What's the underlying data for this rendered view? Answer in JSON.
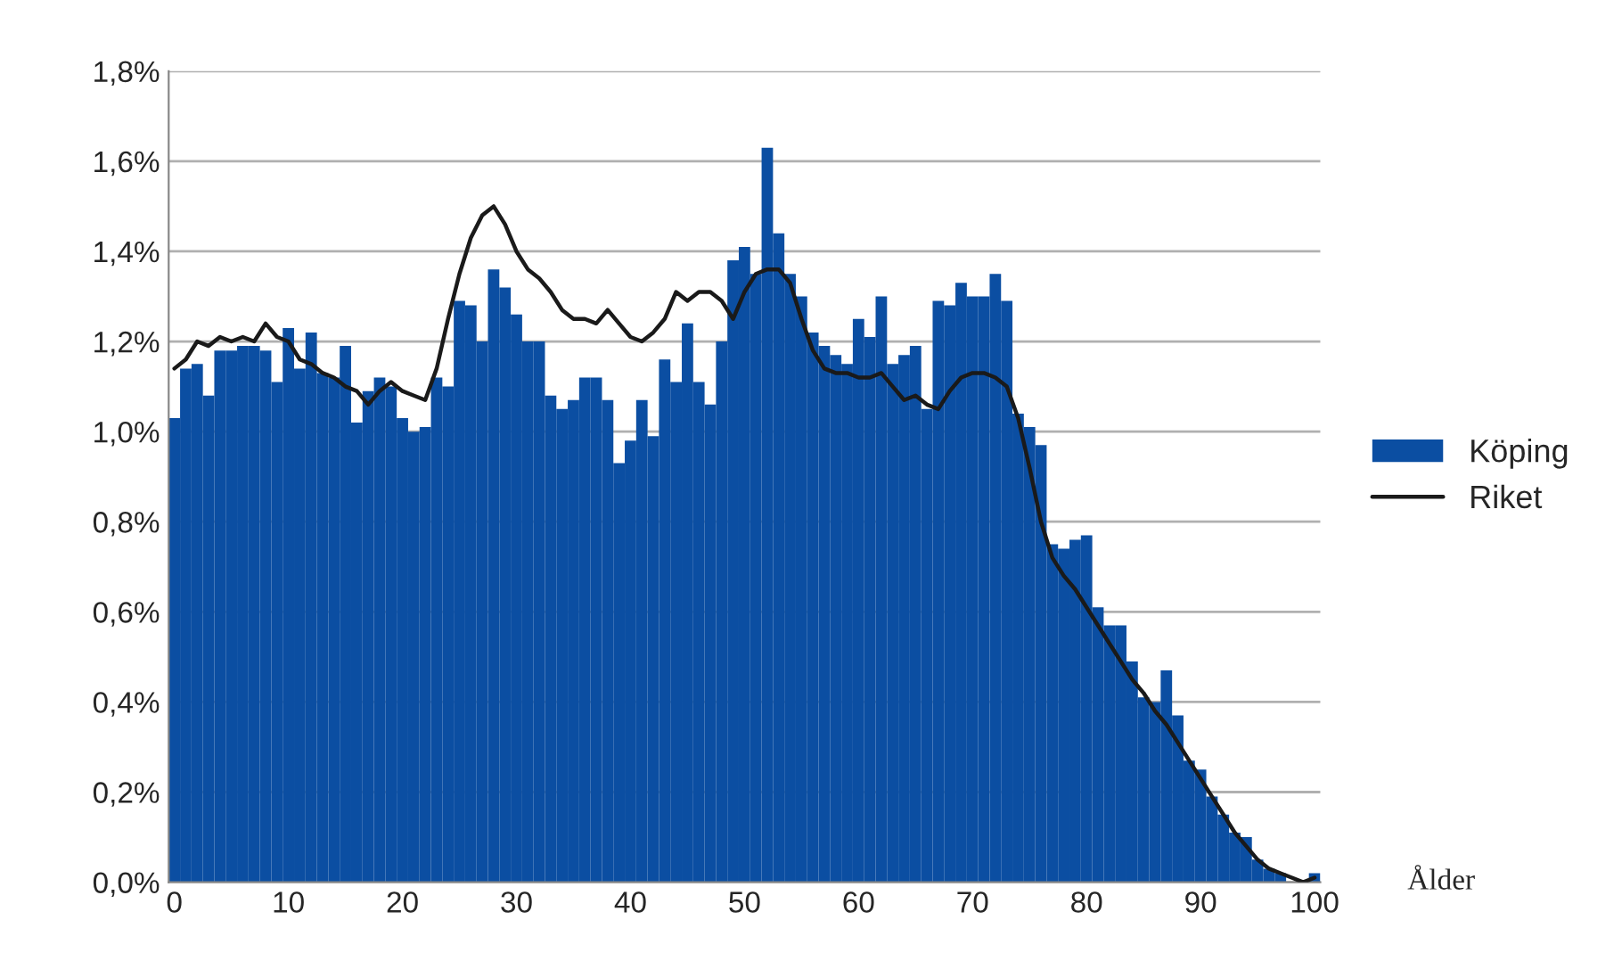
{
  "chart_data": {
    "type": "bar",
    "xlabel": "Ålder",
    "x": [
      0,
      1,
      2,
      3,
      4,
      5,
      6,
      7,
      8,
      9,
      10,
      11,
      12,
      13,
      14,
      15,
      16,
      17,
      18,
      19,
      20,
      21,
      22,
      23,
      24,
      25,
      26,
      27,
      28,
      29,
      30,
      31,
      32,
      33,
      34,
      35,
      36,
      37,
      38,
      39,
      40,
      41,
      42,
      43,
      44,
      45,
      46,
      47,
      48,
      49,
      50,
      51,
      52,
      53,
      54,
      55,
      56,
      57,
      58,
      59,
      60,
      61,
      62,
      63,
      64,
      65,
      66,
      67,
      68,
      69,
      70,
      71,
      72,
      73,
      74,
      75,
      76,
      77,
      78,
      79,
      80,
      81,
      82,
      83,
      84,
      85,
      86,
      87,
      88,
      89,
      90,
      91,
      92,
      93,
      94,
      95,
      96,
      97,
      98,
      99,
      100
    ],
    "series": [
      {
        "name": "Köping",
        "color": "#0b4ea2",
        "values": [
          1.03,
          1.14,
          1.15,
          1.08,
          1.18,
          1.18,
          1.19,
          1.19,
          1.18,
          1.11,
          1.23,
          1.14,
          1.22,
          1.13,
          1.12,
          1.19,
          1.02,
          1.09,
          1.12,
          1.1,
          1.03,
          1.0,
          1.01,
          1.12,
          1.1,
          1.29,
          1.28,
          1.2,
          1.36,
          1.32,
          1.26,
          1.2,
          1.2,
          1.08,
          1.05,
          1.07,
          1.12,
          1.12,
          1.07,
          0.93,
          0.98,
          1.07,
          0.99,
          1.16,
          1.11,
          1.24,
          1.11,
          1.06,
          1.2,
          1.38,
          1.41,
          1.35,
          1.63,
          1.44,
          1.35,
          1.3,
          1.22,
          1.19,
          1.17,
          1.15,
          1.25,
          1.21,
          1.3,
          1.15,
          1.17,
          1.19,
          1.05,
          1.29,
          1.28,
          1.33,
          1.3,
          1.3,
          1.35,
          1.29,
          1.04,
          1.01,
          0.97,
          0.75,
          0.74,
          0.76,
          0.77,
          0.61,
          0.57,
          0.57,
          0.49,
          0.41,
          0.4,
          0.47,
          0.37,
          0.27,
          0.25,
          0.19,
          0.15,
          0.11,
          0.1,
          0.05,
          0.03,
          0.02,
          null,
          null,
          0.02
        ]
      },
      {
        "name": "Riket",
        "type": "line",
        "color": "#1a1a1a",
        "values": [
          1.14,
          1.16,
          1.2,
          1.19,
          1.21,
          1.2,
          1.21,
          1.2,
          1.24,
          1.21,
          1.2,
          1.16,
          1.15,
          1.13,
          1.12,
          1.1,
          1.09,
          1.06,
          1.09,
          1.11,
          1.09,
          1.08,
          1.07,
          1.14,
          1.25,
          1.35,
          1.43,
          1.48,
          1.5,
          1.46,
          1.4,
          1.36,
          1.34,
          1.31,
          1.27,
          1.25,
          1.25,
          1.24,
          1.27,
          1.24,
          1.21,
          1.2,
          1.22,
          1.25,
          1.31,
          1.29,
          1.31,
          1.31,
          1.29,
          1.25,
          1.31,
          1.35,
          1.36,
          1.36,
          1.33,
          1.25,
          1.18,
          1.14,
          1.13,
          1.13,
          1.12,
          1.12,
          1.13,
          1.1,
          1.07,
          1.08,
          1.06,
          1.05,
          1.09,
          1.12,
          1.13,
          1.13,
          1.12,
          1.1,
          1.03,
          0.92,
          0.8,
          0.72,
          0.68,
          0.65,
          0.61,
          0.57,
          0.53,
          0.49,
          0.45,
          0.42,
          0.38,
          0.35,
          0.31,
          0.27,
          0.23,
          0.19,
          0.15,
          0.11,
          0.08,
          0.05,
          0.03,
          0.02,
          0.01,
          0.0,
          0.01
        ]
      }
    ],
    "xlim": [
      -0.5,
      100.5
    ],
    "xticks": [
      0,
      10,
      20,
      30,
      40,
      50,
      60,
      70,
      80,
      90,
      100
    ],
    "ylim": [
      0,
      1.8
    ],
    "yticks": [
      {
        "value": 0,
        "label": "0,0%"
      },
      {
        "value": 0.2,
        "label": "0,2%"
      },
      {
        "value": 0.4,
        "label": "0,4%"
      },
      {
        "value": 0.6,
        "label": "0,6%"
      },
      {
        "value": 0.8,
        "label": "0,8%"
      },
      {
        "value": 1.0,
        "label": "1,0%"
      },
      {
        "value": 1.2,
        "label": "1,2%"
      },
      {
        "value": 1.4,
        "label": "1,4%"
      },
      {
        "value": 1.6,
        "label": "1,6%"
      },
      {
        "value": 1.8,
        "label": "1,8%"
      }
    ],
    "grid": "y",
    "legend": "right",
    "line_style": "solid",
    "marker": "none"
  }
}
